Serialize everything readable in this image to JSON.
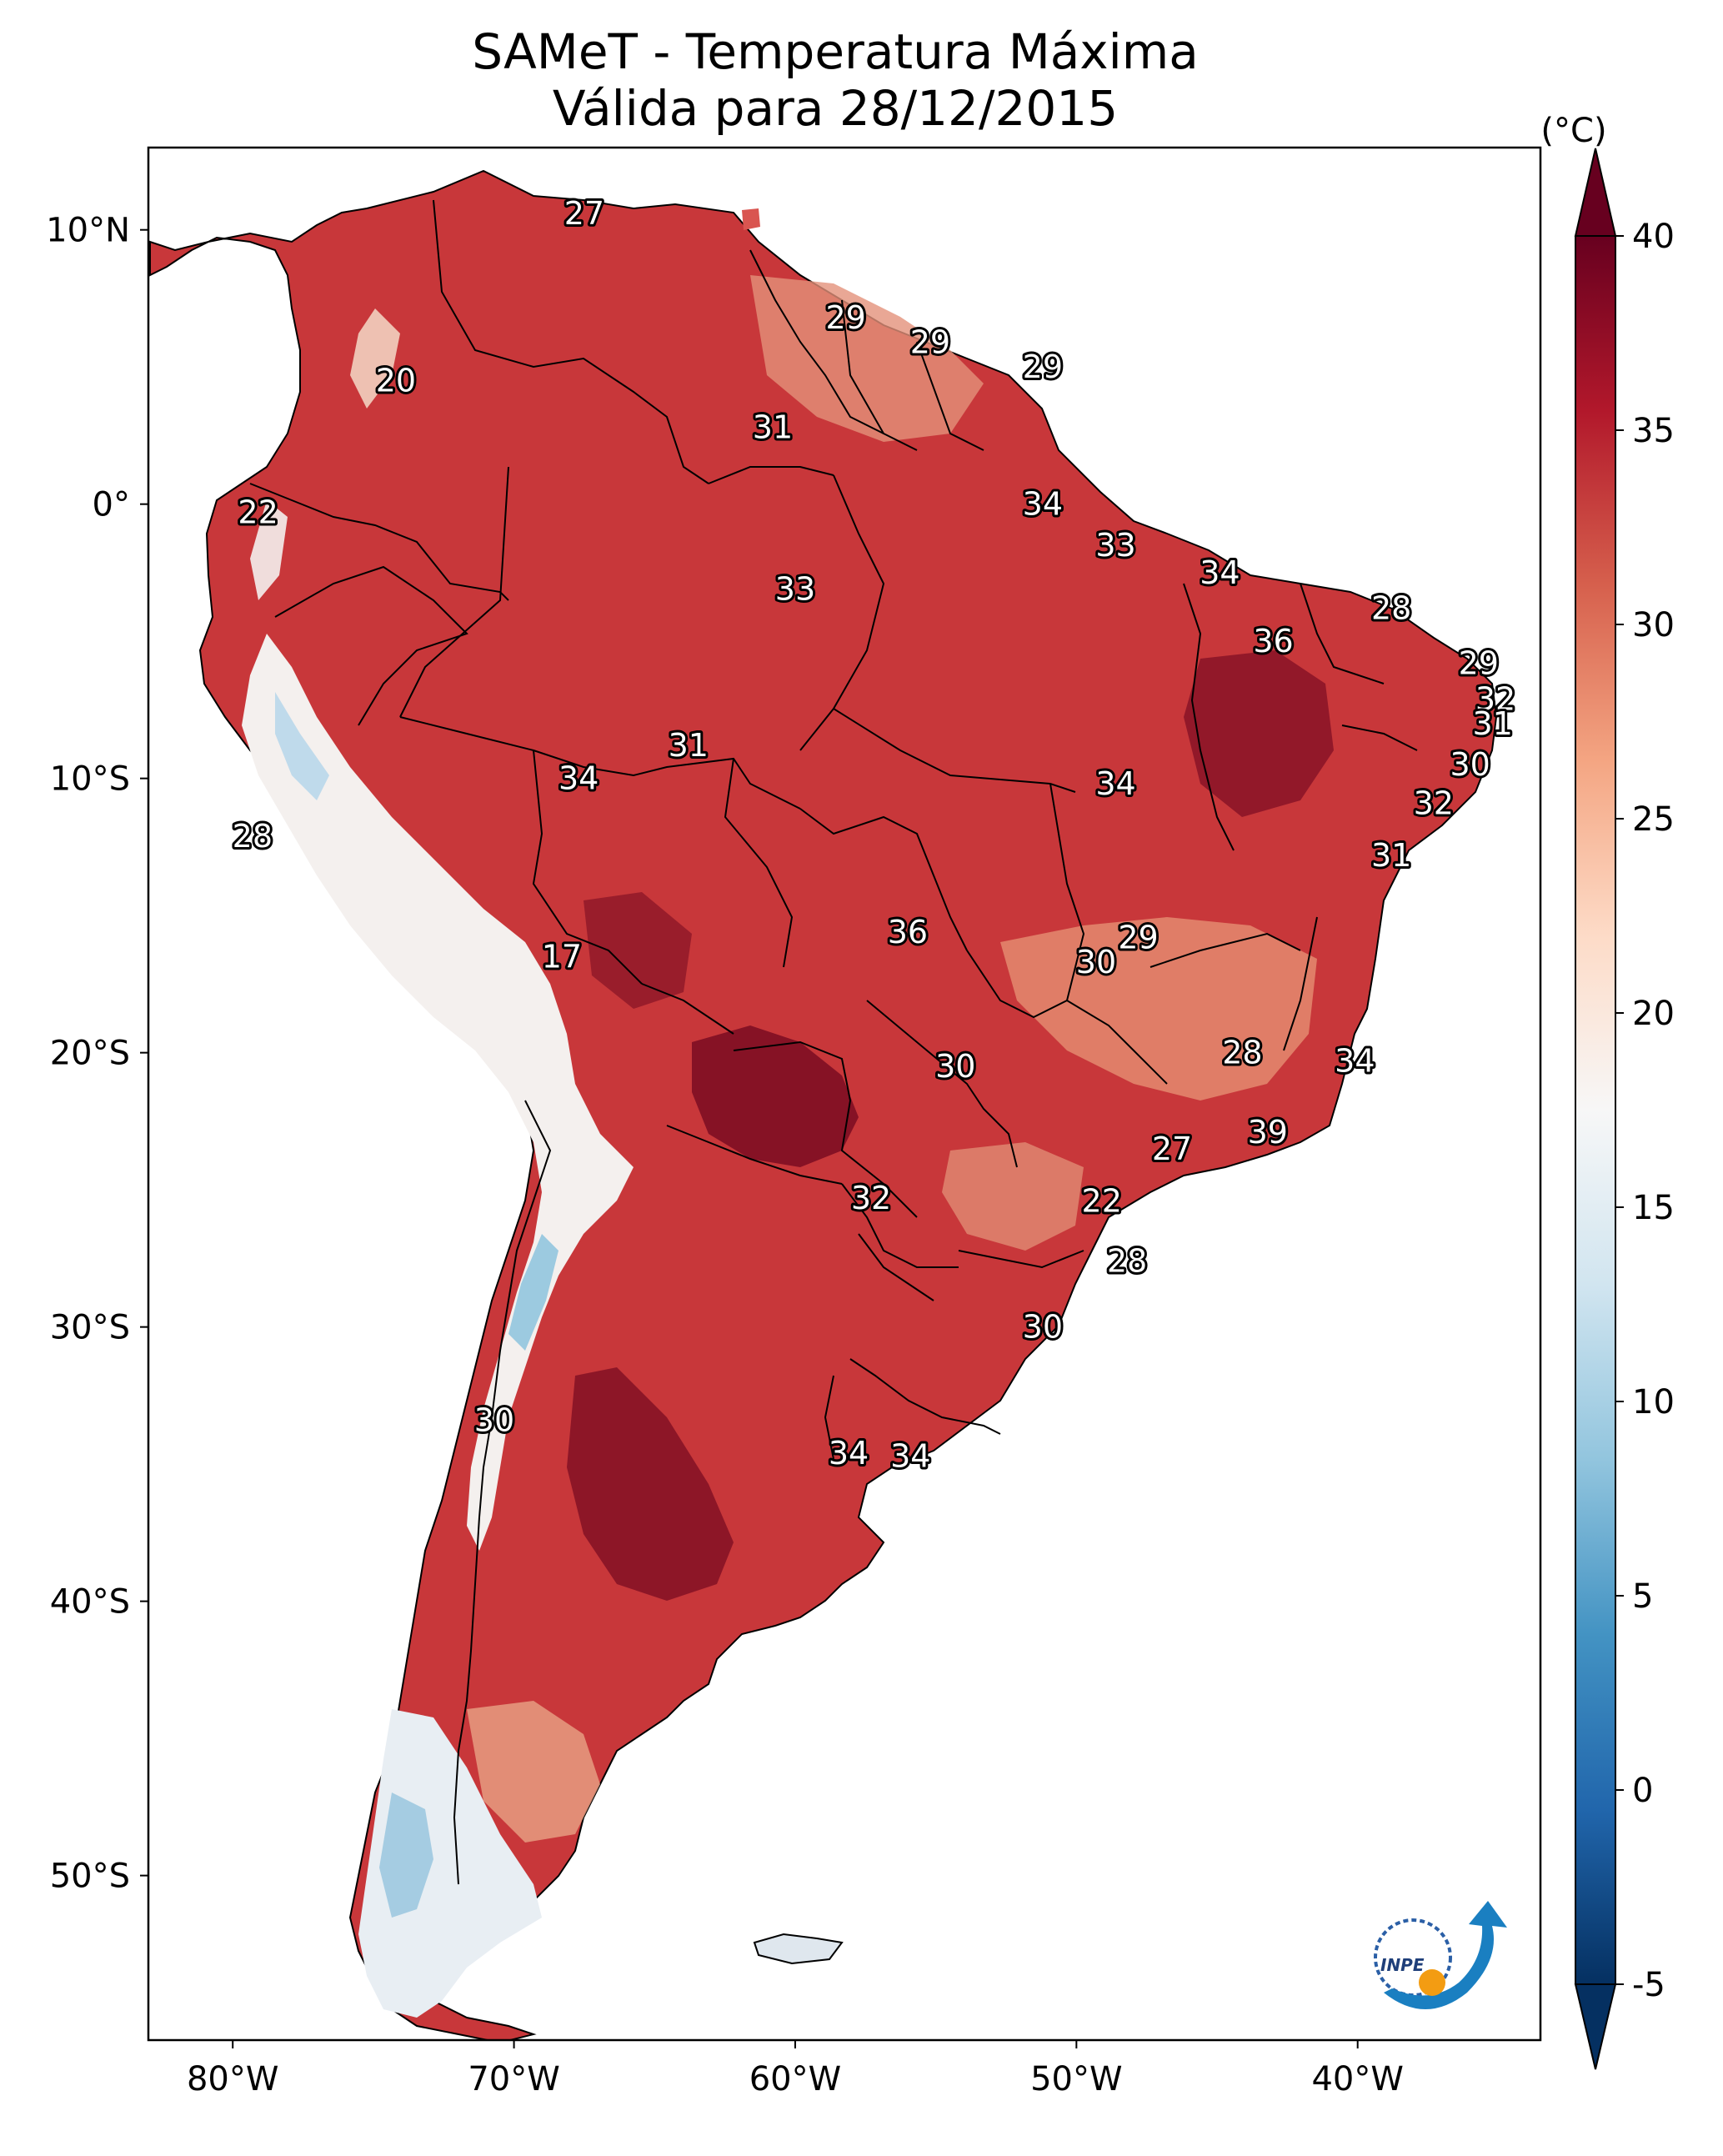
{
  "title": {
    "line1": "SAMeT - Temperatura Máxima",
    "line2": "Válida para 28/12/2015"
  },
  "map": {
    "extent": {
      "lon_min": -83,
      "lon_max": -33.5,
      "lat_min": -56,
      "lat_max": 13
    },
    "x_ticks": [
      {
        "lon": -80,
        "label": "80°W"
      },
      {
        "lon": -70,
        "label": "70°W"
      },
      {
        "lon": -60,
        "label": "60°W"
      },
      {
        "lon": -50,
        "label": "50°W"
      },
      {
        "lon": -40,
        "label": "40°W"
      }
    ],
    "y_ticks": [
      {
        "lat": 10,
        "label": "10°N"
      },
      {
        "lat": 0,
        "label": "0°"
      },
      {
        "lat": -10,
        "label": "10°S"
      },
      {
        "lat": -20,
        "label": "20°S"
      },
      {
        "lat": -30,
        "label": "30°S"
      },
      {
        "lat": -40,
        "label": "40°S"
      },
      {
        "lat": -50,
        "label": "50°S"
      }
    ],
    "station_labels": [
      {
        "text": "27",
        "lon": -67.5,
        "lat": 10.6
      },
      {
        "text": "20",
        "lon": -74.2,
        "lat": 4.5
      },
      {
        "text": "22",
        "lon": -79.1,
        "lat": -0.3
      },
      {
        "text": "29",
        "lon": -58.2,
        "lat": 6.8
      },
      {
        "text": "29",
        "lon": -55.2,
        "lat": 5.9
      },
      {
        "text": "29",
        "lon": -51.2,
        "lat": 5.0
      },
      {
        "text": "31",
        "lon": -60.8,
        "lat": 2.8
      },
      {
        "text": "34",
        "lon": -51.2,
        "lat": 0.0
      },
      {
        "text": "33",
        "lon": -48.6,
        "lat": -1.5
      },
      {
        "text": "33",
        "lon": -60.0,
        "lat": -3.1
      },
      {
        "text": "34",
        "lon": -44.9,
        "lat": -2.5
      },
      {
        "text": "28",
        "lon": -38.8,
        "lat": -3.8
      },
      {
        "text": "36",
        "lon": -43.0,
        "lat": -5.0
      },
      {
        "text": "29",
        "lon": -35.7,
        "lat": -5.8
      },
      {
        "text": "32",
        "lon": -35.1,
        "lat": -7.1
      },
      {
        "text": "31",
        "lon": -35.2,
        "lat": -8.0
      },
      {
        "text": "30",
        "lon": -36.0,
        "lat": -9.5
      },
      {
        "text": "32",
        "lon": -37.3,
        "lat": -10.9
      },
      {
        "text": "31",
        "lon": -63.8,
        "lat": -8.8
      },
      {
        "text": "34",
        "lon": -67.7,
        "lat": -10.0
      },
      {
        "text": "34",
        "lon": -48.6,
        "lat": -10.2
      },
      {
        "text": "28",
        "lon": -79.3,
        "lat": -12.1
      },
      {
        "text": "31",
        "lon": -38.8,
        "lat": -12.8
      },
      {
        "text": "17",
        "lon": -68.3,
        "lat": -16.5
      },
      {
        "text": "36",
        "lon": -56.0,
        "lat": -15.6
      },
      {
        "text": "29",
        "lon": -47.8,
        "lat": -15.8
      },
      {
        "text": "30",
        "lon": -49.3,
        "lat": -16.7
      },
      {
        "text": "30",
        "lon": -54.3,
        "lat": -20.5
      },
      {
        "text": "28",
        "lon": -44.1,
        "lat": -20.0
      },
      {
        "text": "34",
        "lon": -40.1,
        "lat": -20.3
      },
      {
        "text": "39",
        "lon": -43.2,
        "lat": -22.9
      },
      {
        "text": "27",
        "lon": -46.6,
        "lat": -23.5
      },
      {
        "text": "32",
        "lon": -57.3,
        "lat": -25.3
      },
      {
        "text": "22",
        "lon": -49.1,
        "lat": -25.4
      },
      {
        "text": "28",
        "lon": -48.2,
        "lat": -27.6
      },
      {
        "text": "30",
        "lon": -51.2,
        "lat": -30.0
      },
      {
        "text": "30",
        "lon": -70.7,
        "lat": -33.4
      },
      {
        "text": "34",
        "lon": -58.1,
        "lat": -34.6
      },
      {
        "text": "34",
        "lon": -55.9,
        "lat": -34.7
      }
    ]
  },
  "colorbar": {
    "unit": "(°C)",
    "vmin": -5,
    "vmax": 40,
    "extend": "both",
    "ticks": [
      {
        "value": 40,
        "label": "40"
      },
      {
        "value": 35,
        "label": "35"
      },
      {
        "value": 30,
        "label": "30"
      },
      {
        "value": 25,
        "label": "25"
      },
      {
        "value": 20,
        "label": "20"
      },
      {
        "value": 15,
        "label": "15"
      },
      {
        "value": 10,
        "label": "10"
      },
      {
        "value": 5,
        "label": "5"
      },
      {
        "value": 0,
        "label": "0"
      },
      {
        "value": -5,
        "label": "-5"
      }
    ],
    "colors": [
      "#053061",
      "#2166ac",
      "#4393c3",
      "#92c5de",
      "#d1e5f0",
      "#f7f7f7",
      "#fddbc7",
      "#f4a582",
      "#d6604d",
      "#b2182b",
      "#67001f"
    ]
  },
  "logo": {
    "text": "INPE"
  }
}
